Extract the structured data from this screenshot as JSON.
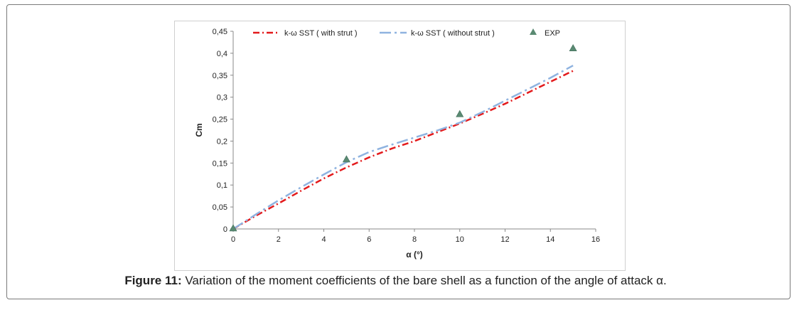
{
  "caption": {
    "label": "Figure 11:",
    "text": " Variation of the moment coefficients of the bare shell as a function of the angle of attack α."
  },
  "chart_data": {
    "type": "line",
    "xlabel": "α (°)",
    "ylabel": "Cm",
    "xlim": [
      0,
      16
    ],
    "ylim": [
      0,
      0.45
    ],
    "xticks": [
      0,
      2,
      4,
      6,
      8,
      10,
      12,
      14,
      16
    ],
    "yticks": [
      0,
      0.05,
      0.1,
      0.15,
      0.2,
      0.25,
      0.3,
      0.35,
      0.4,
      0.45
    ],
    "ytick_labels": [
      "0",
      "0,05",
      "0,1",
      "0,15",
      "0,2",
      "0,25",
      "0,3",
      "0,35",
      "0,4",
      "0,45"
    ],
    "legend_position": "top",
    "grid": false,
    "series": [
      {
        "name": "k-ω SST ( with strut )",
        "style": "dash-dot",
        "color": "#e31a1c",
        "x": [
          0,
          1,
          2,
          3,
          4,
          5,
          6,
          7,
          8,
          9,
          10,
          11,
          12,
          13,
          14,
          15
        ],
        "y": [
          0,
          0.03,
          0.058,
          0.087,
          0.115,
          0.14,
          0.163,
          0.183,
          0.2,
          0.22,
          0.24,
          0.262,
          0.285,
          0.31,
          0.335,
          0.36
        ]
      },
      {
        "name": "k-ω SST ( without strut )",
        "style": "long-dash-dot",
        "color": "#8fb3e0",
        "x": [
          0,
          1,
          2,
          3,
          4,
          5,
          6,
          7,
          8,
          9,
          10,
          11,
          12,
          13,
          14,
          15
        ],
        "y": [
          0,
          0.033,
          0.065,
          0.095,
          0.124,
          0.152,
          0.175,
          0.192,
          0.208,
          0.224,
          0.242,
          0.266,
          0.292,
          0.318,
          0.344,
          0.372
        ]
      },
      {
        "name": "EXP",
        "style": "marker-triangle",
        "color": "#5a8a72",
        "x": [
          0,
          5,
          10,
          15
        ],
        "y": [
          0,
          0.157,
          0.26,
          0.41
        ]
      }
    ]
  }
}
